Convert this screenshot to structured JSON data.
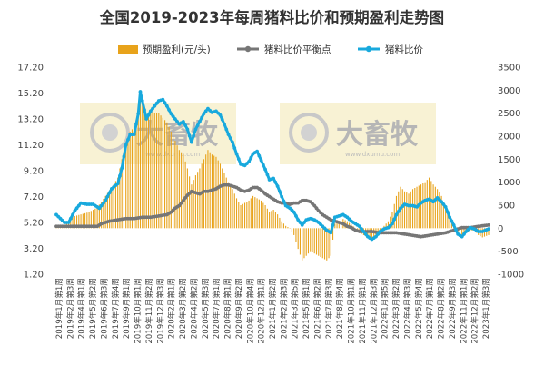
{
  "chart_data": {
    "title": "全国2019-2023年每周猪料比价和预期盈利走势图",
    "watermark": {
      "text": "大畜牧",
      "sub": "www.dxumu.com"
    },
    "colors": {
      "profit": "#E8A31B",
      "breakeven": "#767676",
      "ratio": "#18A9DD",
      "title": "#333333"
    },
    "legend": {
      "position": "top-center",
      "items": [
        {
          "key": "profit",
          "label": "预期盈利(元/头)",
          "marker": "bar"
        },
        {
          "key": "breakeven",
          "label": "猪料比价平衡点",
          "marker": "line-dot"
        },
        {
          "key": "ratio",
          "label": "猪料比价",
          "marker": "line-dot"
        }
      ]
    },
    "y_left": {
      "ticks": [
        "17.20",
        "15.20",
        "13.20",
        "11.20",
        "9.20",
        "7.20",
        "5.20",
        "3.20",
        "1.20"
      ],
      "min": 1.2,
      "max": 17.2
    },
    "y_right": {
      "ticks": [
        "3500",
        "3000",
        "2500",
        "2000",
        "1500",
        "1000",
        "500",
        "0",
        "-500",
        "-1000"
      ],
      "min": -1000,
      "max": 3500
    },
    "x_labels": [
      "2019年1月第1周",
      "2019年2月第3周",
      "2019年4月第1周",
      "2019年5月第2周",
      "2019年6月第3周",
      "2019年7月第4周",
      "2019年9月第1周",
      "2019年10月第1周",
      "2019年11月第2周",
      "2019年12月第3周",
      "2020年2月第1周",
      "2020年3月第2周",
      "2020年4月第2周",
      "2020年5月第3周",
      "2020年7月第1周",
      "2020年8月第1周",
      "2020年9月第2周",
      "2020年10月第4周",
      "2020年12月第1周",
      "2021年1月第2周",
      "2021年2月第3周",
      "2021年3月第5周",
      "2021年5月第1周",
      "2021年6月第2周",
      "2021年7月第3周",
      "2021年8月第4周",
      "2021年10月第1周",
      "2021年11月第1周",
      "2021年12月第3周",
      "2022年1月第5周",
      "2022年3月第2周",
      "2022年4月第3周",
      "2022年5月第4周",
      "2022年7月第1周",
      "2022年8月第2周",
      "2022年9月第3周",
      "2022年11月第1周",
      "2022年12月第2周",
      "2023年1月第3周"
    ],
    "weeks": 212,
    "series": {
      "ratio_anchors": [
        [
          0,
          5.8
        ],
        [
          4,
          5.2
        ],
        [
          6,
          5.2
        ],
        [
          9,
          6.1
        ],
        [
          12,
          6.7
        ],
        [
          15,
          6.6
        ],
        [
          18,
          6.6
        ],
        [
          21,
          6.3
        ],
        [
          24,
          6.9
        ],
        [
          27,
          7.8
        ],
        [
          30,
          8.2
        ],
        [
          32,
          9.4
        ],
        [
          34,
          11.2
        ],
        [
          36,
          12.0
        ],
        [
          38,
          12.0
        ],
        [
          40,
          13.6
        ],
        [
          41,
          15.3
        ],
        [
          42,
          14.6
        ],
        [
          44,
          13.2
        ],
        [
          46,
          13.8
        ],
        [
          48,
          14.2
        ],
        [
          50,
          14.6
        ],
        [
          52,
          14.7
        ],
        [
          54,
          14.2
        ],
        [
          56,
          13.6
        ],
        [
          58,
          13.2
        ],
        [
          60,
          12.8
        ],
        [
          62,
          13.0
        ],
        [
          64,
          12.4
        ],
        [
          66,
          11.4
        ],
        [
          68,
          12.4
        ],
        [
          70,
          13.0
        ],
        [
          72,
          13.6
        ],
        [
          74,
          14.0
        ],
        [
          76,
          13.7
        ],
        [
          78,
          13.8
        ],
        [
          80,
          13.5
        ],
        [
          82,
          12.8
        ],
        [
          84,
          12.0
        ],
        [
          86,
          11.4
        ],
        [
          88,
          10.5
        ],
        [
          90,
          9.7
        ],
        [
          92,
          9.6
        ],
        [
          94,
          9.9
        ],
        [
          96,
          10.5
        ],
        [
          98,
          10.7
        ],
        [
          100,
          10.0
        ],
        [
          102,
          9.3
        ],
        [
          104,
          8.5
        ],
        [
          106,
          8.6
        ],
        [
          108,
          8.0
        ],
        [
          110,
          7.2
        ],
        [
          112,
          6.5
        ],
        [
          114,
          6.3
        ],
        [
          116,
          6.0
        ],
        [
          118,
          5.4
        ],
        [
          120,
          5.0
        ],
        [
          122,
          5.4
        ],
        [
          124,
          5.5
        ],
        [
          126,
          5.4
        ],
        [
          128,
          5.2
        ],
        [
          130,
          4.9
        ],
        [
          132,
          4.6
        ],
        [
          134,
          4.4
        ],
        [
          136,
          5.6
        ],
        [
          138,
          5.7
        ],
        [
          140,
          5.8
        ],
        [
          142,
          5.6
        ],
        [
          144,
          5.3
        ],
        [
          146,
          5.1
        ],
        [
          148,
          4.9
        ],
        [
          150,
          4.5
        ],
        [
          152,
          4.1
        ],
        [
          154,
          3.9
        ],
        [
          156,
          4.1
        ],
        [
          158,
          4.5
        ],
        [
          160,
          4.7
        ],
        [
          162,
          4.8
        ],
        [
          164,
          5.1
        ],
        [
          166,
          5.8
        ],
        [
          168,
          6.3
        ],
        [
          170,
          6.6
        ],
        [
          172,
          6.5
        ],
        [
          174,
          6.5
        ],
        [
          176,
          6.4
        ],
        [
          178,
          6.7
        ],
        [
          180,
          6.9
        ],
        [
          182,
          7.0
        ],
        [
          184,
          6.8
        ],
        [
          186,
          7.1
        ],
        [
          188,
          6.8
        ],
        [
          190,
          6.4
        ],
        [
          192,
          5.6
        ],
        [
          194,
          5.0
        ],
        [
          196,
          4.3
        ],
        [
          198,
          4.1
        ],
        [
          200,
          4.5
        ],
        [
          202,
          4.8
        ],
        [
          204,
          4.7
        ],
        [
          206,
          4.5
        ],
        [
          208,
          4.5
        ],
        [
          211,
          4.7
        ]
      ],
      "breakeven_anchors": [
        [
          0,
          4.9
        ],
        [
          10,
          4.9
        ],
        [
          20,
          4.9
        ],
        [
          22,
          5.1
        ],
        [
          26,
          5.3
        ],
        [
          30,
          5.4
        ],
        [
          34,
          5.5
        ],
        [
          38,
          5.5
        ],
        [
          42,
          5.6
        ],
        [
          46,
          5.6
        ],
        [
          50,
          5.7
        ],
        [
          54,
          5.8
        ],
        [
          56,
          6.0
        ],
        [
          58,
          6.3
        ],
        [
          60,
          6.5
        ],
        [
          62,
          6.9
        ],
        [
          64,
          7.3
        ],
        [
          66,
          7.6
        ],
        [
          68,
          7.5
        ],
        [
          70,
          7.4
        ],
        [
          72,
          7.6
        ],
        [
          74,
          7.6
        ],
        [
          76,
          7.7
        ],
        [
          78,
          7.8
        ],
        [
          80,
          8.0
        ],
        [
          82,
          8.1
        ],
        [
          84,
          8.1
        ],
        [
          86,
          8.0
        ],
        [
          88,
          7.9
        ],
        [
          90,
          7.7
        ],
        [
          92,
          7.6
        ],
        [
          94,
          7.7
        ],
        [
          96,
          7.9
        ],
        [
          98,
          7.9
        ],
        [
          100,
          7.7
        ],
        [
          102,
          7.4
        ],
        [
          104,
          7.2
        ],
        [
          106,
          7.0
        ],
        [
          108,
          6.8
        ],
        [
          110,
          6.7
        ],
        [
          112,
          6.7
        ],
        [
          114,
          6.6
        ],
        [
          116,
          6.7
        ],
        [
          118,
          6.7
        ],
        [
          120,
          6.9
        ],
        [
          122,
          6.9
        ],
        [
          124,
          6.8
        ],
        [
          126,
          6.5
        ],
        [
          128,
          6.1
        ],
        [
          130,
          5.8
        ],
        [
          132,
          5.6
        ],
        [
          134,
          5.4
        ],
        [
          136,
          5.3
        ],
        [
          138,
          5.2
        ],
        [
          140,
          5.1
        ],
        [
          142,
          4.9
        ],
        [
          144,
          4.8
        ],
        [
          146,
          4.6
        ],
        [
          148,
          4.5
        ],
        [
          150,
          4.5
        ],
        [
          154,
          4.5
        ],
        [
          158,
          4.4
        ],
        [
          162,
          4.4
        ],
        [
          166,
          4.4
        ],
        [
          170,
          4.3
        ],
        [
          174,
          4.2
        ],
        [
          178,
          4.1
        ],
        [
          182,
          4.2
        ],
        [
          186,
          4.3
        ],
        [
          190,
          4.4
        ],
        [
          194,
          4.6
        ],
        [
          198,
          4.8
        ],
        [
          202,
          4.8
        ],
        [
          206,
          4.9
        ],
        [
          211,
          5.0
        ]
      ],
      "profit_anchors": [
        [
          0,
          50
        ],
        [
          4,
          50
        ],
        [
          8,
          250
        ],
        [
          12,
          300
        ],
        [
          16,
          350
        ],
        [
          20,
          450
        ],
        [
          24,
          700
        ],
        [
          28,
          950
        ],
        [
          30,
          1100
        ],
        [
          32,
          1500
        ],
        [
          34,
          1800
        ],
        [
          36,
          2100
        ],
        [
          38,
          2200
        ],
        [
          40,
          2500
        ],
        [
          41,
          3000
        ],
        [
          42,
          2800
        ],
        [
          44,
          2450
        ],
        [
          46,
          2550
        ],
        [
          48,
          2500
        ],
        [
          50,
          2500
        ],
        [
          52,
          2400
        ],
        [
          54,
          2300
        ],
        [
          56,
          2100
        ],
        [
          58,
          1900
        ],
        [
          60,
          1700
        ],
        [
          62,
          1600
        ],
        [
          64,
          1300
        ],
        [
          66,
          950
        ],
        [
          68,
          1150
        ],
        [
          70,
          1300
        ],
        [
          72,
          1500
        ],
        [
          74,
          1700
        ],
        [
          76,
          1600
        ],
        [
          78,
          1550
        ],
        [
          80,
          1400
        ],
        [
          82,
          1200
        ],
        [
          84,
          1000
        ],
        [
          86,
          850
        ],
        [
          88,
          650
        ],
        [
          90,
          500
        ],
        [
          92,
          550
        ],
        [
          94,
          600
        ],
        [
          96,
          700
        ],
        [
          98,
          650
        ],
        [
          100,
          600
        ],
        [
          102,
          500
        ],
        [
          104,
          350
        ],
        [
          106,
          400
        ],
        [
          108,
          300
        ],
        [
          110,
          150
        ],
        [
          112,
          50
        ],
        [
          114,
          0
        ],
        [
          116,
          -150
        ],
        [
          118,
          -450
        ],
        [
          120,
          -700
        ],
        [
          122,
          -600
        ],
        [
          124,
          -500
        ],
        [
          126,
          -550
        ],
        [
          128,
          -600
        ],
        [
          130,
          -650
        ],
        [
          132,
          -700
        ],
        [
          134,
          -600
        ],
        [
          136,
          100
        ],
        [
          138,
          150
        ],
        [
          140,
          200
        ],
        [
          142,
          150
        ],
        [
          144,
          80
        ],
        [
          146,
          0
        ],
        [
          148,
          -100
        ],
        [
          150,
          -150
        ],
        [
          152,
          -200
        ],
        [
          154,
          -220
        ],
        [
          156,
          -150
        ],
        [
          158,
          -50
        ],
        [
          160,
          50
        ],
        [
          162,
          150
        ],
        [
          164,
          350
        ],
        [
          166,
          700
        ],
        [
          168,
          900
        ],
        [
          170,
          800
        ],
        [
          172,
          750
        ],
        [
          174,
          850
        ],
        [
          176,
          900
        ],
        [
          178,
          950
        ],
        [
          180,
          1000
        ],
        [
          182,
          1100
        ],
        [
          184,
          950
        ],
        [
          186,
          850
        ],
        [
          188,
          700
        ],
        [
          190,
          450
        ],
        [
          192,
          200
        ],
        [
          194,
          50
        ],
        [
          196,
          -150
        ],
        [
          198,
          -200
        ],
        [
          200,
          -100
        ],
        [
          202,
          -50
        ],
        [
          204,
          -50
        ],
        [
          206,
          -150
        ],
        [
          208,
          -200
        ],
        [
          211,
          -150
        ]
      ]
    }
  }
}
